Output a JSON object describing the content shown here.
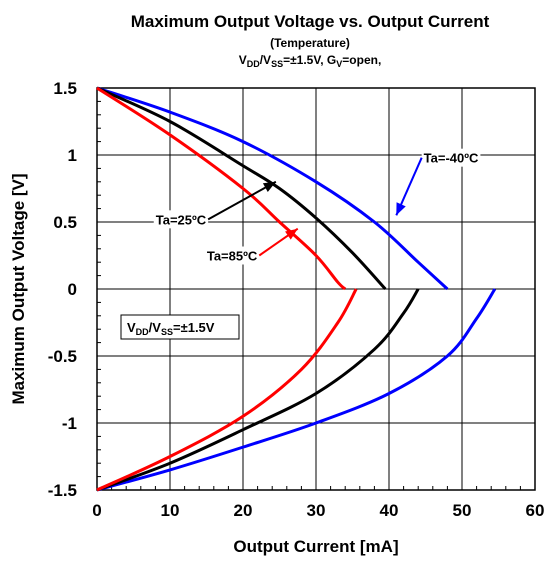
{
  "chart_data": {
    "type": "line",
    "title": "Maximum Output Voltage vs. Output Current",
    "subtitle": "(Temperature)",
    "condition": {
      "v1": "V",
      "v1_sub": "DD",
      "slash": "/V",
      "v2_sub": "SS",
      "mid": "=±1.5V, G",
      "g_sub": "V",
      "end": "=open,"
    },
    "xlabel": "Output Current [mA]",
    "ylabel": "Maximum Output Voltage [V]",
    "xlim": [
      0,
      60
    ],
    "ylim": [
      -1.5,
      1.5
    ],
    "xticks": [
      "0",
      "10",
      "20",
      "30",
      "40",
      "50",
      "60"
    ],
    "yticks": [
      "1.5",
      "1",
      "0.5",
      "0",
      "-0.5",
      "-1",
      "-1.5"
    ],
    "grid": true,
    "legend_box": {
      "v1": "V",
      "v1_sub": "DD",
      "slash": "/V",
      "v2_sub": "SS",
      "end": "=±1.5V"
    },
    "series": [
      {
        "name": "Ta=-40ºC",
        "color": "#0000ff",
        "source_x": [
          0,
          10,
          20,
          30,
          38,
          44,
          48
        ],
        "source_y": [
          1.5,
          1.32,
          1.1,
          0.8,
          0.5,
          0.2,
          0.0
        ],
        "sink_x": [
          0,
          10,
          20,
          30,
          40,
          48,
          52,
          54.5
        ],
        "sink_y": [
          -1.5,
          -1.35,
          -1.18,
          -1.0,
          -0.78,
          -0.5,
          -0.22,
          0.0
        ]
      },
      {
        "name": "Ta=25ºC",
        "color": "#000000",
        "source_x": [
          0,
          10,
          20,
          25,
          30,
          35,
          39.5
        ],
        "source_y": [
          1.5,
          1.25,
          0.92,
          0.75,
          0.53,
          0.27,
          0.0
        ],
        "sink_x": [
          0,
          10,
          20,
          30,
          38,
          42,
          44
        ],
        "sink_y": [
          -1.5,
          -1.3,
          -1.05,
          -0.78,
          -0.45,
          -0.18,
          0.0
        ]
      },
      {
        "name": "Ta=85ºC",
        "color": "#ff0000",
        "source_x": [
          0,
          10,
          20,
          25,
          30,
          33,
          34
        ],
        "source_y": [
          1.5,
          1.15,
          0.75,
          0.5,
          0.25,
          0.05,
          0.0
        ],
        "sink_x": [
          0,
          10,
          20,
          28,
          33,
          35.5
        ],
        "sink_y": [
          -1.5,
          -1.25,
          -0.95,
          -0.6,
          -0.25,
          0.0
        ]
      }
    ],
    "annotations": [
      {
        "text": "Ta=-40ºC",
        "color": "#0000ff",
        "label_x": 48.5,
        "label_y": 0.98,
        "arrow_x": 41.0,
        "arrow_y": 0.55
      },
      {
        "text": "Ta=25ºC",
        "color": "#000000",
        "label_x": 11.5,
        "label_y": 0.52,
        "arrow_x": 24.5,
        "arrow_y": 0.8
      },
      {
        "text": "Ta=85ºC",
        "color": "#ff0000",
        "label_x": 18.5,
        "label_y": 0.25,
        "arrow_x": 27.5,
        "arrow_y": 0.45
      }
    ]
  }
}
